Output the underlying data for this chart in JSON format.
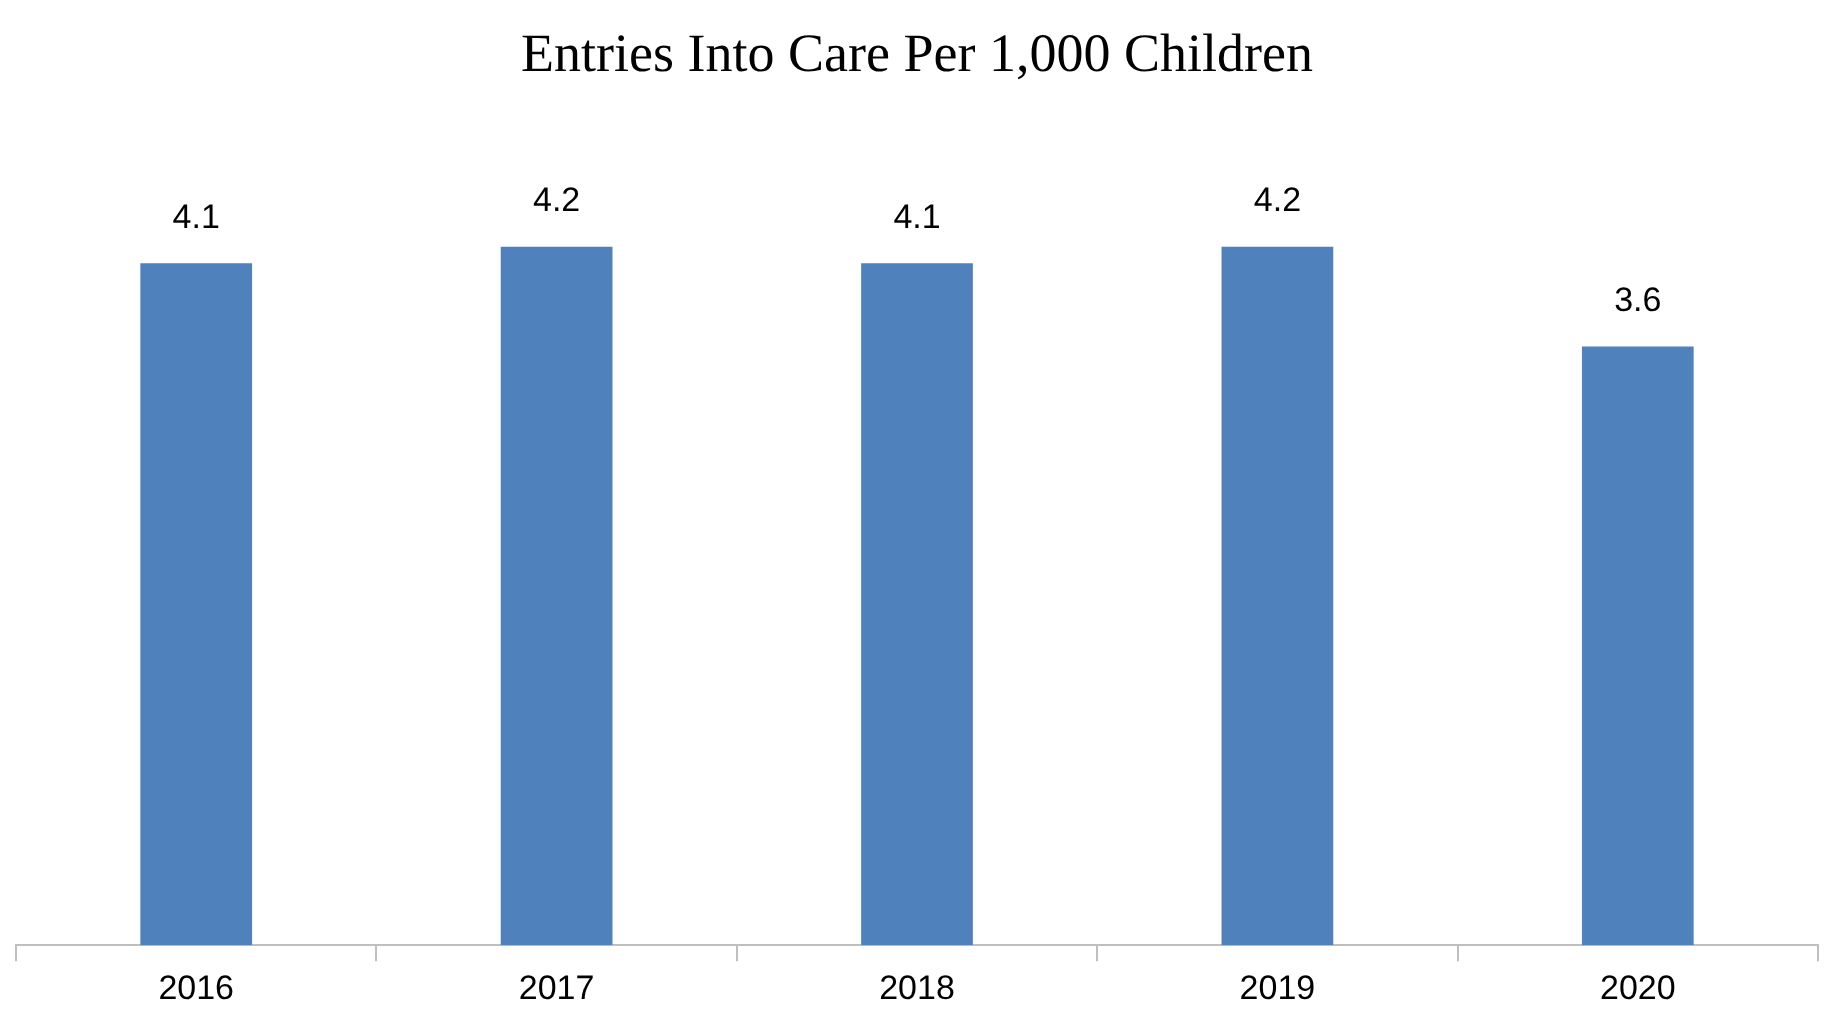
{
  "chart_data": {
    "type": "bar",
    "title": "Entries Into Care Per 1,000 Children",
    "categories": [
      "2016",
      "2017",
      "2018",
      "2019",
      "2020"
    ],
    "values": [
      4.1,
      4.2,
      4.1,
      4.2,
      3.6
    ],
    "color": "#4f81bd",
    "data_labels": true,
    "grid": false,
    "legend": false
  }
}
